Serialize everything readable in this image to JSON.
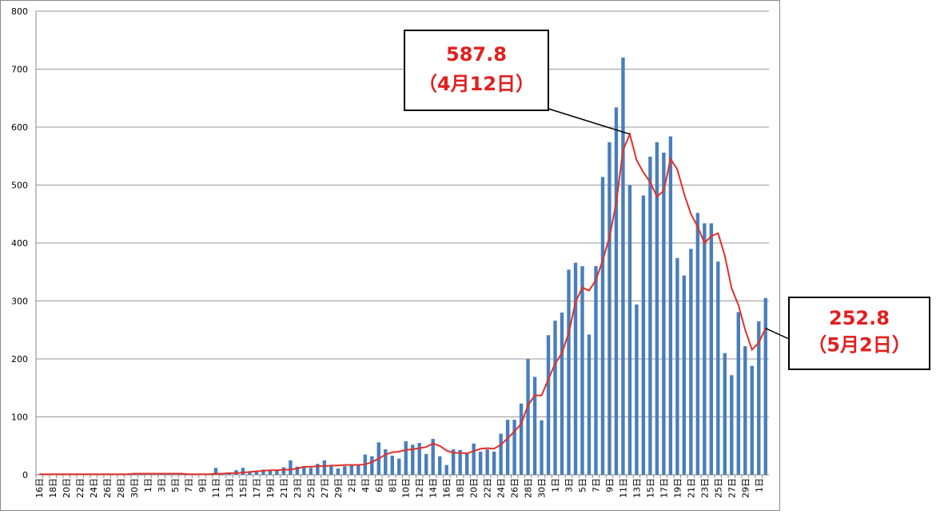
{
  "chart_data": {
    "type": "bar-line",
    "categories": [
      "16日",
      null,
      "18日",
      null,
      "20日",
      null,
      "22日",
      null,
      "24日",
      null,
      "26日",
      null,
      "28日",
      null,
      "30日",
      null,
      "1日",
      null,
      "3日",
      null,
      "5日",
      null,
      "7日",
      null,
      "9日",
      null,
      "11日",
      null,
      "13日",
      null,
      "15日",
      null,
      "17日",
      null,
      "19日",
      null,
      "21日",
      null,
      "23日",
      null,
      "25日",
      null,
      "27日",
      null,
      "29日",
      null,
      "2日",
      null,
      "4日",
      null,
      "6日",
      null,
      "8日",
      null,
      "10日",
      null,
      "12日",
      null,
      "14日",
      null,
      "16日",
      null,
      "18日",
      null,
      "20日",
      null,
      "22日",
      null,
      "24日",
      null,
      "26日",
      null,
      "28日",
      null,
      "30日",
      null,
      "1日",
      null,
      "3日",
      null,
      "5日",
      null,
      "7日",
      null,
      "9日",
      null,
      "11日",
      null,
      "13日",
      null,
      "15日",
      null,
      "17日",
      null,
      "19日",
      null,
      "21日",
      null,
      "23日",
      null,
      "25日",
      null,
      "27日",
      null,
      "29日",
      null,
      "1日",
      null
    ],
    "series": [
      {
        "kind": "bar",
        "color": "#4a7ebb",
        "values": [
          1,
          0,
          0,
          0,
          0,
          0,
          0,
          0,
          1,
          1,
          0,
          1,
          2,
          1,
          2,
          1,
          0,
          0,
          0,
          1,
          0,
          1,
          0,
          0,
          0,
          0,
          12,
          1,
          4,
          8,
          12,
          6,
          6,
          9,
          9,
          9,
          13,
          25,
          14,
          13,
          12,
          19,
          25,
          16,
          11,
          15,
          17,
          16,
          35,
          32,
          56,
          44,
          33,
          28,
          58,
          52,
          55,
          36,
          62,
          32,
          17,
          44,
          43,
          38,
          54,
          40,
          44,
          40,
          71,
          95,
          95,
          123,
          200,
          169,
          94,
          241,
          266,
          280,
          354,
          366,
          360,
          242,
          360,
          514,
          574,
          634,
          720,
          500,
          294,
          482,
          549,
          574,
          556,
          584,
          374,
          344,
          390,
          452,
          434,
          434,
          368,
          210,
          172,
          281,
          222,
          188,
          265,
          305
        ]
      },
      {
        "kind": "line",
        "color": "#e0302a",
        "values": [
          1,
          1,
          1,
          1,
          1,
          1,
          1,
          1,
          1,
          1,
          1,
          1,
          1,
          1,
          2,
          2,
          2,
          2,
          2,
          2,
          2,
          2,
          1,
          1,
          1,
          1,
          2,
          2,
          3,
          3,
          4,
          5,
          6,
          7,
          8,
          8,
          9,
          9,
          11,
          14,
          14,
          15,
          15,
          16,
          16,
          17,
          17,
          17,
          18,
          22,
          28,
          35,
          39,
          40,
          43,
          44,
          46,
          48,
          54,
          50,
          42,
          38,
          38,
          37,
          41,
          45,
          46,
          45,
          52,
          63,
          75,
          88,
          120,
          137,
          137,
          165,
          192,
          210,
          245,
          298,
          323,
          318,
          336,
          370,
          410,
          470,
          560,
          587.8,
          543,
          522,
          505,
          480,
          490,
          545,
          527,
          485,
          450,
          428,
          400,
          412,
          417,
          378,
          322,
          293,
          250,
          216,
          228,
          252.8
        ]
      }
    ],
    "annotations": [
      "（4月12日）",
      "（5月2日）"
    ],
    "ylim": [
      0,
      800
    ],
    "yticks": [
      0,
      100,
      200,
      300,
      400,
      500,
      600,
      700,
      800
    ],
    "grid": true
  }
}
